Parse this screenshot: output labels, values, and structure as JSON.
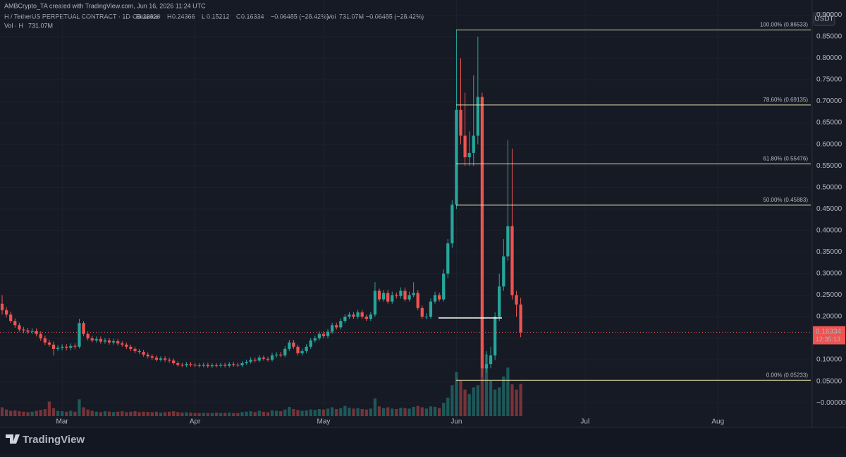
{
  "header": {
    "credit": "AMBCrypto_TA created with TradingView.com, Jun 16, 2026 11:24 UTC",
    "symbol": "H / TetherUS PERPETUAL CONTRACT · 1D · Binance",
    "ohlc": [
      {
        "key": "O",
        "text": "0.22820"
      },
      {
        "key": "H",
        "text": "0.24366"
      },
      {
        "key": "L",
        "text": "0.15212"
      },
      {
        "key": "C",
        "text": "0.16334"
      }
    ],
    "change": "−0.06485 (−28.42%)",
    "vol_key": "Vol",
    "vol": "731.07M",
    "vol_change": "−0.06485 (−28.42%)",
    "vol_line_key": "Vol · H",
    "vol_line_value": "731.07M"
  },
  "footer": {
    "brand": "TradingView"
  },
  "chart_data": {
    "type": "candlestick",
    "currency": "USDT",
    "up_color": "#26a69a",
    "down_color": "#ef5350",
    "open": [
      0.23,
      0.215,
      0.205,
      0.19,
      0.18,
      0.17,
      0.168,
      0.165,
      0.167,
      0.16,
      0.15,
      0.14,
      0.135,
      0.125,
      0.128,
      0.13,
      0.128,
      0.132,
      0.13,
      0.185,
      0.16,
      0.15,
      0.145,
      0.148,
      0.142,
      0.145,
      0.14,
      0.143,
      0.138,
      0.135,
      0.13,
      0.125,
      0.12,
      0.118,
      0.112,
      0.108,
      0.105,
      0.1,
      0.103,
      0.1,
      0.098,
      0.092,
      0.088,
      0.087,
      0.09,
      0.088,
      0.087,
      0.086,
      0.088,
      0.085,
      0.087,
      0.086,
      0.088,
      0.086,
      0.09,
      0.088,
      0.087,
      0.092,
      0.095,
      0.1,
      0.098,
      0.105,
      0.102,
      0.1,
      0.11,
      0.112,
      0.11,
      0.125,
      0.14,
      0.13,
      0.115,
      0.12,
      0.13,
      0.145,
      0.15,
      0.16,
      0.155,
      0.165,
      0.18,
      0.175,
      0.19,
      0.2,
      0.205,
      0.2,
      0.21,
      0.2,
      0.195,
      0.205,
      0.26,
      0.24,
      0.255,
      0.235,
      0.25,
      0.248,
      0.26,
      0.24,
      0.25,
      0.255,
      0.22,
      0.2,
      0.2,
      0.235,
      0.25,
      0.24,
      0.3,
      0.37,
      0.46,
      0.68,
      0.62,
      0.57,
      0.58,
      0.62,
      0.71,
      0.08,
      0.09,
      0.11,
      0.2,
      0.27,
      0.34,
      0.41,
      0.25,
      0.2282
    ],
    "high": [
      0.25,
      0.222,
      0.212,
      0.196,
      0.186,
      0.176,
      0.174,
      0.173,
      0.173,
      0.166,
      0.156,
      0.146,
      0.142,
      0.134,
      0.136,
      0.136,
      0.138,
      0.138,
      0.195,
      0.19,
      0.166,
      0.156,
      0.154,
      0.154,
      0.151,
      0.15,
      0.149,
      0.148,
      0.143,
      0.14,
      0.135,
      0.13,
      0.125,
      0.123,
      0.117,
      0.113,
      0.11,
      0.108,
      0.108,
      0.105,
      0.103,
      0.097,
      0.093,
      0.095,
      0.095,
      0.093,
      0.092,
      0.093,
      0.093,
      0.092,
      0.092,
      0.093,
      0.093,
      0.095,
      0.095,
      0.093,
      0.097,
      0.1,
      0.106,
      0.105,
      0.111,
      0.11,
      0.107,
      0.116,
      0.118,
      0.118,
      0.131,
      0.146,
      0.146,
      0.135,
      0.126,
      0.136,
      0.151,
      0.156,
      0.166,
      0.166,
      0.171,
      0.186,
      0.186,
      0.196,
      0.206,
      0.211,
      0.211,
      0.216,
      0.216,
      0.205,
      0.211,
      0.28,
      0.265,
      0.262,
      0.262,
      0.258,
      0.256,
      0.268,
      0.268,
      0.258,
      0.28,
      0.262,
      0.226,
      0.208,
      0.242,
      0.258,
      0.256,
      0.31,
      0.38,
      0.47,
      0.865,
      0.8,
      0.72,
      0.63,
      0.76,
      0.85,
      0.72,
      0.12,
      0.13,
      0.21,
      0.3,
      0.38,
      0.61,
      0.59,
      0.26,
      0.24366
    ],
    "low": [
      0.205,
      0.198,
      0.185,
      0.174,
      0.165,
      0.162,
      0.16,
      0.16,
      0.154,
      0.144,
      0.134,
      0.13,
      0.11,
      0.12,
      0.122,
      0.122,
      0.122,
      0.124,
      0.126,
      0.155,
      0.145,
      0.14,
      0.14,
      0.137,
      0.137,
      0.135,
      0.135,
      0.133,
      0.13,
      0.125,
      0.12,
      0.115,
      0.113,
      0.107,
      0.103,
      0.1,
      0.096,
      0.096,
      0.095,
      0.093,
      0.088,
      0.084,
      0.083,
      0.083,
      0.084,
      0.083,
      0.082,
      0.082,
      0.081,
      0.081,
      0.082,
      0.082,
      0.082,
      0.082,
      0.084,
      0.083,
      0.083,
      0.088,
      0.091,
      0.094,
      0.094,
      0.098,
      0.096,
      0.096,
      0.105,
      0.106,
      0.106,
      0.12,
      0.125,
      0.11,
      0.11,
      0.115,
      0.125,
      0.14,
      0.145,
      0.15,
      0.15,
      0.16,
      0.17,
      0.17,
      0.185,
      0.195,
      0.195,
      0.195,
      0.195,
      0.19,
      0.19,
      0.2,
      0.235,
      0.235,
      0.23,
      0.23,
      0.242,
      0.242,
      0.235,
      0.235,
      0.245,
      0.215,
      0.195,
      0.194,
      0.195,
      0.23,
      0.235,
      0.235,
      0.29,
      0.36,
      0.45,
      0.6,
      0.55,
      0.55,
      0.55,
      0.6,
      0.06,
      0.07,
      0.08,
      0.1,
      0.19,
      0.26,
      0.33,
      0.24,
      0.2,
      0.15212
    ],
    "close": [
      0.215,
      0.205,
      0.19,
      0.18,
      0.17,
      0.168,
      0.165,
      0.167,
      0.16,
      0.15,
      0.14,
      0.135,
      0.125,
      0.128,
      0.13,
      0.128,
      0.132,
      0.13,
      0.185,
      0.16,
      0.15,
      0.145,
      0.148,
      0.142,
      0.145,
      0.14,
      0.143,
      0.138,
      0.135,
      0.13,
      0.125,
      0.12,
      0.118,
      0.112,
      0.108,
      0.105,
      0.1,
      0.103,
      0.1,
      0.098,
      0.092,
      0.088,
      0.087,
      0.09,
      0.088,
      0.087,
      0.086,
      0.088,
      0.085,
      0.087,
      0.086,
      0.088,
      0.086,
      0.09,
      0.088,
      0.087,
      0.092,
      0.095,
      0.1,
      0.098,
      0.105,
      0.102,
      0.1,
      0.11,
      0.112,
      0.11,
      0.125,
      0.14,
      0.13,
      0.115,
      0.12,
      0.13,
      0.145,
      0.15,
      0.16,
      0.155,
      0.165,
      0.18,
      0.175,
      0.19,
      0.2,
      0.205,
      0.2,
      0.21,
      0.2,
      0.195,
      0.205,
      0.26,
      0.24,
      0.255,
      0.235,
      0.25,
      0.248,
      0.26,
      0.24,
      0.25,
      0.255,
      0.22,
      0.2,
      0.2,
      0.235,
      0.25,
      0.24,
      0.3,
      0.37,
      0.46,
      0.68,
      0.62,
      0.57,
      0.58,
      0.62,
      0.71,
      0.08,
      0.09,
      0.11,
      0.2,
      0.27,
      0.34,
      0.41,
      0.25,
      0.2282,
      0.16334
    ],
    "volume": [
      200,
      150,
      120,
      130,
      110,
      100,
      90,
      100,
      120,
      140,
      160,
      330,
      180,
      120,
      110,
      100,
      120,
      100,
      380,
      200,
      150,
      120,
      100,
      90,
      110,
      100,
      90,
      100,
      110,
      90,
      100,
      110,
      90,
      100,
      95,
      90,
      100,
      80,
      90,
      100,
      110,
      90,
      80,
      85,
      80,
      70,
      70,
      75,
      70,
      70,
      80,
      70,
      75,
      80,
      70,
      70,
      90,
      100,
      110,
      90,
      120,
      100,
      90,
      130,
      120,
      110,
      150,
      210,
      160,
      140,
      120,
      130,
      150,
      140,
      160,
      150,
      170,
      200,
      160,
      180,
      230,
      190,
      170,
      180,
      160,
      150,
      170,
      400,
      220,
      180,
      200,
      170,
      160,
      190,
      180,
      170,
      210,
      230,
      200,
      170,
      220,
      210,
      180,
      300,
      420,
      700,
      1000,
      800,
      600,
      500,
      650,
      700,
      2400,
      1400,
      800,
      600,
      650,
      900,
      1100,
      720,
      600,
      731.07
    ],
    "xlim": [
      -0.5,
      189
    ],
    "xticks": [
      {
        "value": 14,
        "label": "Mar"
      },
      {
        "value": 45,
        "label": "Apr"
      },
      {
        "value": 75,
        "label": "May"
      },
      {
        "value": 106,
        "label": "Jun"
      },
      {
        "value": 136,
        "label": "Jul"
      },
      {
        "value": 167,
        "label": "Aug"
      }
    ],
    "ylim": [
      -0.057,
      0.935
    ],
    "yticks": [
      {
        "value": 0.9,
        "label": "0.90000"
      },
      {
        "value": 0.85,
        "label": "0.85000"
      },
      {
        "value": 0.8,
        "label": "0.80000"
      },
      {
        "value": 0.75,
        "label": "0.75000"
      },
      {
        "value": 0.7,
        "label": "0.70000"
      },
      {
        "value": 0.65,
        "label": "0.65000"
      },
      {
        "value": 0.6,
        "label": "0.60000"
      },
      {
        "value": 0.55,
        "label": "0.55000"
      },
      {
        "value": 0.5,
        "label": "0.50000"
      },
      {
        "value": 0.45,
        "label": "0.45000"
      },
      {
        "value": 0.4,
        "label": "0.40000"
      },
      {
        "value": 0.35,
        "label": "0.35000"
      },
      {
        "value": 0.3,
        "label": "0.30000"
      },
      {
        "value": 0.25,
        "label": "0.25000"
      },
      {
        "value": 0.2,
        "label": "0.20000"
      },
      {
        "value": 0.15,
        "label": "0.15000"
      },
      {
        "value": 0.1,
        "label": "0.10000"
      },
      {
        "value": 0.05,
        "label": "0.05000"
      },
      {
        "value": 0,
        "label": "−0.00000"
      }
    ],
    "grid": true,
    "fib_levels": [
      {
        "label": "100.00% (0.86533)",
        "value": 0.86533
      },
      {
        "label": "78.60% (0.69135)",
        "value": 0.69135
      },
      {
        "label": "61.80% (0.55476)",
        "value": 0.55476
      },
      {
        "label": "50.00% (0.45883)",
        "value": 0.45883
      },
      {
        "label": "0.00% (0.05233)",
        "value": 0.05233
      }
    ],
    "fib_color": "#e6e0a8",
    "hline": 0.197,
    "last_price": {
      "value": 0.16334,
      "label": "0.16334",
      "countdown": "12:35:13"
    }
  }
}
